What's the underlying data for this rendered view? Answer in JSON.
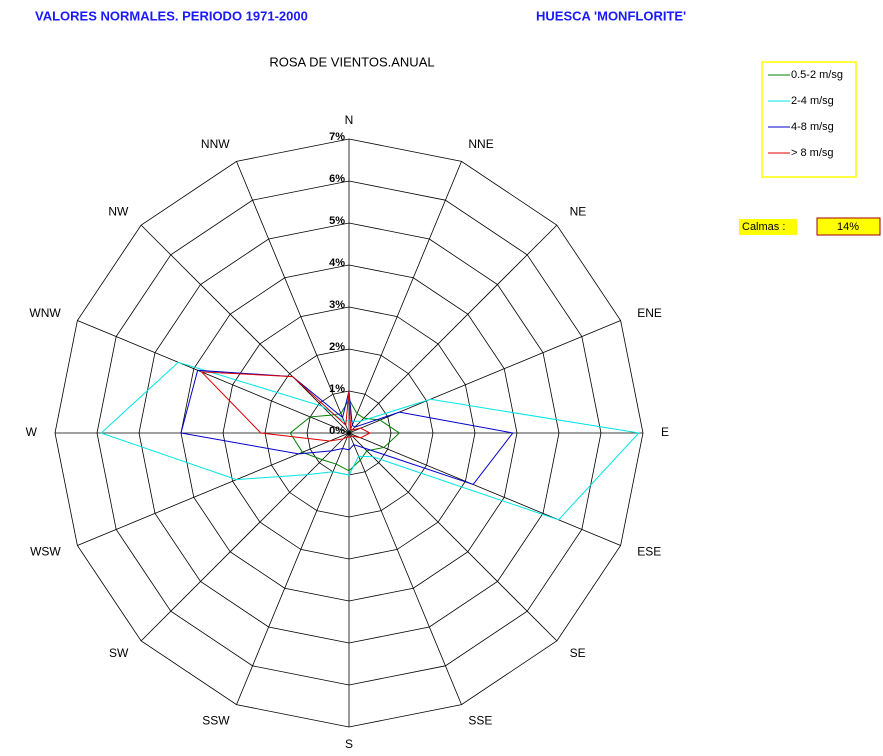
{
  "header_left": "VALORES NORMALES. PERIODO 1971-2000",
  "header_right": "HUESCA 'MONFLORITE'",
  "chart_data": {
    "type": "radar",
    "title": "ROSA DE VIENTOS.ANUAL",
    "categories": [
      "N",
      "NNE",
      "NE",
      "ENE",
      "E",
      "ESE",
      "SE",
      "SSE",
      "S",
      "SSW",
      "SW",
      "WSW",
      "W",
      "WNW",
      "NW",
      "NNW"
    ],
    "rlim": [
      0,
      7
    ],
    "rticks": [
      {
        "value": 0,
        "label": "0%"
      },
      {
        "value": 1,
        "label": "1%"
      },
      {
        "value": 2,
        "label": "2%"
      },
      {
        "value": 3,
        "label": "3%"
      },
      {
        "value": 4,
        "label": "4%"
      },
      {
        "value": 5,
        "label": "5%"
      },
      {
        "value": 6,
        "label": "6%"
      },
      {
        "value": 7,
        "label": "7%"
      }
    ],
    "grid": true,
    "legend": "top-right",
    "series": [
      {
        "name": "0.5-2 m/sg",
        "color": "#008000",
        "values": [
          0.8,
          0.5,
          0.5,
          0.8,
          1.2,
          0.9,
          0.6,
          0.7,
          0.9,
          0.8,
          0.9,
          1.2,
          1.4,
          1.0,
          0.6,
          0.5
        ]
      },
      {
        "name": "2-4 m/sg",
        "color": "#00e5e5",
        "values": [
          0.3,
          0.3,
          0.4,
          2.1,
          6.9,
          5.4,
          0.8,
          0.6,
          1.0,
          1.0,
          1.4,
          2.9,
          5.9,
          4.4,
          0.9,
          0.3
        ]
      },
      {
        "name": "4-8 m/sg",
        "color": "#0000cc",
        "values": [
          1.0,
          0.2,
          0.2,
          1.3,
          3.9,
          3.2,
          0.5,
          0.3,
          0.4,
          0.4,
          0.6,
          1.3,
          4.0,
          3.9,
          1.9,
          0.4
        ]
      },
      {
        "name": "> 8 m/sg",
        "color": "#e00000",
        "values": [
          1.0,
          0.1,
          0.1,
          0.3,
          0.5,
          0.3,
          0.1,
          0.1,
          0.1,
          0.1,
          0.2,
          0.5,
          2.1,
          3.8,
          1.9,
          0.2
        ]
      }
    ],
    "calm_label": "Calmas :",
    "calm_value": 14,
    "calm_value_label": "14%"
  }
}
